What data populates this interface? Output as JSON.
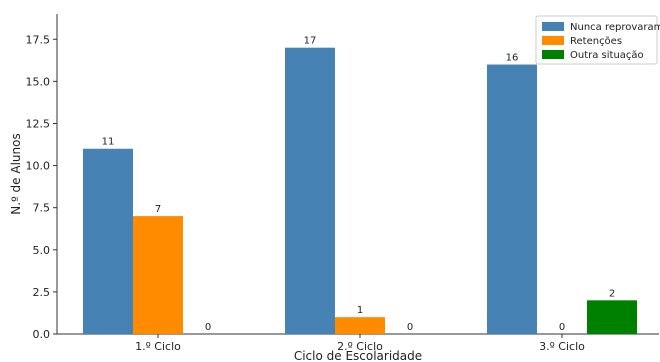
{
  "chart_data": {
    "type": "bar",
    "title": "",
    "xlabel": "Ciclo de Escolaridade",
    "ylabel": "N.º de Alunos",
    "categories": [
      "1.º Ciclo",
      "2.º Ciclo",
      "3.º Ciclo"
    ],
    "series": [
      {
        "name": "Nunca reprovaram",
        "color": "#4682B4",
        "values": [
          11,
          17,
          16
        ]
      },
      {
        "name": "Retenções",
        "color": "#FF8C00",
        "values": [
          7,
          1,
          0
        ]
      },
      {
        "name": "Outra situação",
        "color": "#008000",
        "values": [
          0,
          0,
          2
        ]
      }
    ],
    "ylim": [
      0,
      19
    ],
    "yticks": [
      0.0,
      2.5,
      5.0,
      7.5,
      10.0,
      12.5,
      15.0,
      17.5
    ],
    "ytick_labels": [
      "0.0",
      "2.5",
      "5.0",
      "7.5",
      "10.0",
      "12.5",
      "15.0",
      "17.5"
    ],
    "grid": false,
    "legend_position": "top-right",
    "data_labels": true
  }
}
